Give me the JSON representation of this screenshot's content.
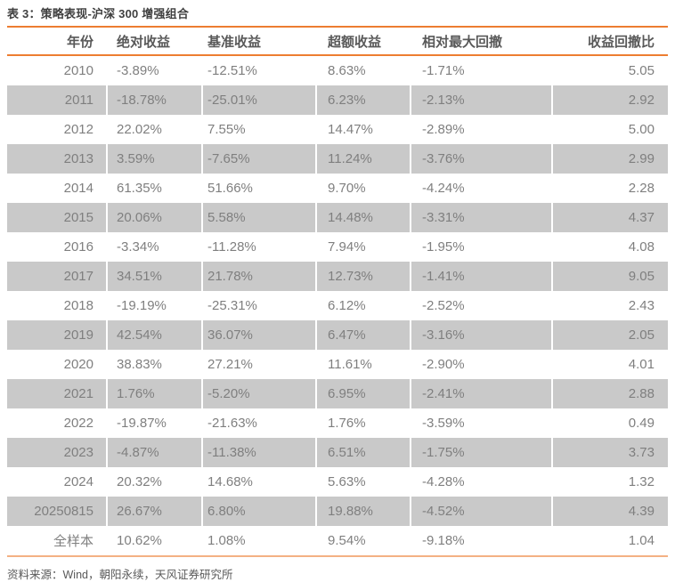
{
  "title": "表 3：策略表现-沪深 300 增强组合",
  "colors": {
    "accent_orange": "#ED7D31",
    "rule_light_orange": "#F4B183",
    "row_alt": "#C9C9C9",
    "header_text": "#595959",
    "body_text": "#7F7F7F",
    "title_text": "#3F3F3F"
  },
  "table": {
    "headers": [
      "年份",
      "绝对收益",
      "基准收益",
      "超额收益",
      "相对最大回撤",
      "收益回撤比"
    ],
    "rows": [
      [
        "2010",
        "-3.89%",
        "-12.51%",
        "8.63%",
        "-1.71%",
        "5.05"
      ],
      [
        "2011",
        "-18.78%",
        "-25.01%",
        "6.23%",
        "-2.13%",
        "2.92"
      ],
      [
        "2012",
        "22.02%",
        "7.55%",
        "14.47%",
        "-2.89%",
        "5.00"
      ],
      [
        "2013",
        "3.59%",
        "-7.65%",
        "11.24%",
        "-3.76%",
        "2.99"
      ],
      [
        "2014",
        "61.35%",
        "51.66%",
        "9.70%",
        "-4.24%",
        "2.28"
      ],
      [
        "2015",
        "20.06%",
        "5.58%",
        "14.48%",
        "-3.31%",
        "4.37"
      ],
      [
        "2016",
        "-3.34%",
        "-11.28%",
        "7.94%",
        "-1.95%",
        "4.08"
      ],
      [
        "2017",
        "34.51%",
        "21.78%",
        "12.73%",
        "-1.41%",
        "9.05"
      ],
      [
        "2018",
        "-19.19%",
        "-25.31%",
        "6.12%",
        "-2.52%",
        "2.43"
      ],
      [
        "2019",
        "42.54%",
        "36.07%",
        "6.47%",
        "-3.16%",
        "2.05"
      ],
      [
        "2020",
        "38.83%",
        "27.21%",
        "11.61%",
        "-2.90%",
        "4.01"
      ],
      [
        "2021",
        "1.76%",
        "-5.20%",
        "6.95%",
        "-2.41%",
        "2.88"
      ],
      [
        "2022",
        "-19.87%",
        "-21.63%",
        "1.76%",
        "-3.59%",
        "0.49"
      ],
      [
        "2023",
        "-4.87%",
        "-11.38%",
        "6.51%",
        "-1.75%",
        "3.73"
      ],
      [
        "2024",
        "20.32%",
        "14.68%",
        "5.63%",
        "-4.28%",
        "1.32"
      ],
      [
        "20250815",
        "26.67%",
        "6.80%",
        "19.88%",
        "-4.52%",
        "4.39"
      ],
      [
        "全样本",
        "10.62%",
        "1.08%",
        "9.54%",
        "-9.18%",
        "1.04"
      ]
    ]
  },
  "footer": {
    "source": "资料来源：Wind，朝阳永续，天风证券研究所"
  }
}
